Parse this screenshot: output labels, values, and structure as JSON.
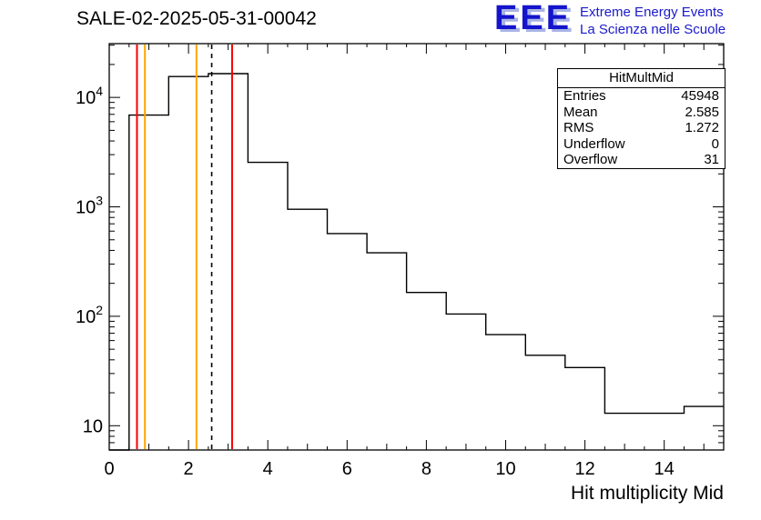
{
  "logo": {
    "text": "EEE",
    "line1": "Extreme Energy Events",
    "line2": "La Scienza nelle Scuole",
    "color": "#1a1acc"
  },
  "stats": {
    "header": "HitMultMid",
    "rows": [
      {
        "label": "Entries",
        "value": "45948"
      },
      {
        "label": "Mean",
        "value": "2.585"
      },
      {
        "label": "RMS",
        "value": "1.272"
      },
      {
        "label": "Underflow",
        "value": "0"
      },
      {
        "label": "Overflow",
        "value": "31"
      }
    ]
  },
  "chart_data": {
    "type": "histogram-step",
    "title": "SALE-02-2025-05-31-00042",
    "xlabel": "Hit multiplicity Mid",
    "ylabel": "",
    "y_scale": "log",
    "grid": false,
    "x_range": [
      0,
      15.5
    ],
    "y_range": [
      6,
      31000
    ],
    "x_ticks": [
      0,
      2,
      4,
      6,
      8,
      10,
      12,
      14
    ],
    "y_ticks": [
      10,
      100,
      1000,
      10000
    ],
    "bin_start": 0.5,
    "bin_width": 1,
    "bin_centers": [
      1,
      2,
      3,
      4,
      5,
      6,
      7,
      8,
      9,
      10,
      11,
      12,
      13,
      14,
      15
    ],
    "values": [
      6900,
      15500,
      16500,
      2550,
      950,
      570,
      380,
      165,
      105,
      68,
      44,
      34,
      13,
      13,
      15
    ],
    "line_color": "#000000",
    "vlines": [
      {
        "name": "red-limit-low",
        "x": 0.7,
        "color": "#ff0000",
        "style": "solid"
      },
      {
        "name": "orange-limit-low",
        "x": 0.9,
        "color": "#ffa500",
        "style": "solid"
      },
      {
        "name": "orange-limit-high",
        "x": 2.2,
        "color": "#ffa500",
        "style": "solid"
      },
      {
        "name": "mean-line",
        "x": 2.585,
        "color": "#000000",
        "style": "dashed"
      },
      {
        "name": "red-limit-high",
        "x": 3.1,
        "color": "#ff0000",
        "style": "solid"
      }
    ]
  }
}
